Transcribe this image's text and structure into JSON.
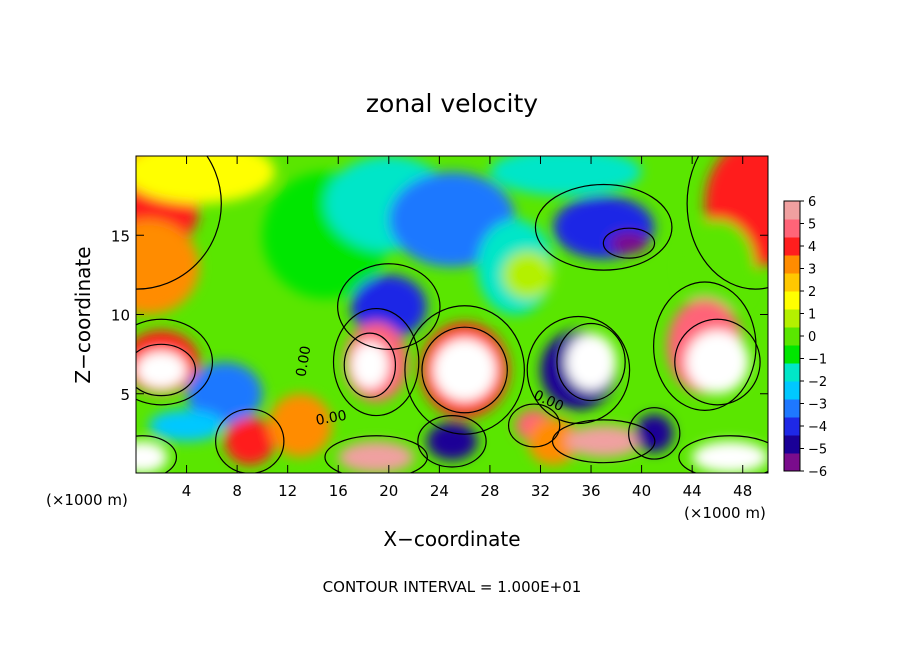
{
  "chart_data": {
    "type": "heatmap",
    "title": "zonal velocity",
    "xlabel": "X−coordinate",
    "ylabel": "Z−coordinate",
    "x_unit_left": "(×1000 m)",
    "x_unit_right": "(×1000 m)",
    "footer": "CONTOUR INTERVAL = 1.000E+01",
    "xlim": [
      0,
      50
    ],
    "ylim": [
      0,
      20
    ],
    "x_ticks": [
      4,
      8,
      12,
      16,
      20,
      24,
      28,
      32,
      36,
      40,
      44,
      48
    ],
    "y_ticks": [
      5,
      10,
      15
    ],
    "colorbar": {
      "range": [
        -6,
        6
      ],
      "labels": [
        "6",
        "5",
        "4",
        "3",
        "2",
        "1",
        "0",
        "−1",
        "−2",
        "−3",
        "−4",
        "−5",
        "−6"
      ],
      "colors": [
        "#7a0c8c",
        "#1a0096",
        "#1e28e6",
        "#1e78ff",
        "#00c8ff",
        "#00e6c8",
        "#00e600",
        "#5ae600",
        "#b4f000",
        "#ffff00",
        "#ffc800",
        "#ff8c00",
        "#ff1e1e",
        "#ff6478",
        "#f0a0a0"
      ]
    },
    "contour_labels": [
      {
        "text": "0.00",
        "x": 15.5,
        "y": 3.2,
        "rotate": -10
      },
      {
        "text": "0.00",
        "x": 32.5,
        "y": 4.3,
        "rotate": 25
      },
      {
        "text": "0.00",
        "x": 13.6,
        "y": 7.0,
        "rotate": -80
      }
    ],
    "field_blobs": [
      {
        "x": 0,
        "y": 17,
        "rx": 5,
        "ry": 4,
        "v": 4
      },
      {
        "x": 1,
        "y": 13,
        "rx": 4,
        "ry": 3,
        "v": 3
      },
      {
        "x": 5,
        "y": 19,
        "rx": 6,
        "ry": 2,
        "v": 1.5
      },
      {
        "x": 15,
        "y": 15,
        "rx": 5,
        "ry": 4,
        "v": -1
      },
      {
        "x": 20,
        "y": 17,
        "rx": 5,
        "ry": 3,
        "v": -2
      },
      {
        "x": 25,
        "y": 16,
        "rx": 5,
        "ry": 3,
        "v": -3
      },
      {
        "x": 30,
        "y": 13,
        "rx": 3,
        "ry": 3,
        "v": -2
      },
      {
        "x": 34,
        "y": 19,
        "rx": 6,
        "ry": 1.5,
        "v": -2
      },
      {
        "x": 37,
        "y": 15.5,
        "rx": 4,
        "ry": 2,
        "v": -4
      },
      {
        "x": 39,
        "y": 14.5,
        "rx": 1.5,
        "ry": 0.7,
        "v": -6
      },
      {
        "x": 31,
        "y": 12.5,
        "rx": 2,
        "ry": 1.5,
        "v": 1
      },
      {
        "x": 20,
        "y": 10.5,
        "rx": 3,
        "ry": 2,
        "v": -4
      },
      {
        "x": 49,
        "y": 17,
        "rx": 4,
        "ry": 4,
        "v": 4
      },
      {
        "x": 46,
        "y": 13,
        "rx": 3,
        "ry": 3,
        "v": 0
      },
      {
        "x": 2,
        "y": 7,
        "rx": 3,
        "ry": 2,
        "v": 4
      },
      {
        "x": 2,
        "y": 6.5,
        "rx": 2,
        "ry": 1.2,
        "v": 6.5
      },
      {
        "x": 7,
        "y": 5,
        "rx": 3,
        "ry": 2,
        "v": -3
      },
      {
        "x": 4,
        "y": 3,
        "rx": 3,
        "ry": 1,
        "v": -2.5
      },
      {
        "x": 0.5,
        "y": 1,
        "rx": 2,
        "ry": 1,
        "v": 6.5
      },
      {
        "x": 9,
        "y": 2,
        "rx": 2,
        "ry": 1.5,
        "v": 4
      },
      {
        "x": 13,
        "y": 3,
        "rx": 2.5,
        "ry": 2,
        "v": 3
      },
      {
        "x": 19,
        "y": 7,
        "rx": 2.5,
        "ry": 2.5,
        "v": 5
      },
      {
        "x": 18.5,
        "y": 6.8,
        "rx": 1.5,
        "ry": 1.5,
        "v": 6.5
      },
      {
        "x": 19,
        "y": 1,
        "rx": 3,
        "ry": 1,
        "v": 5.5
      },
      {
        "x": 26,
        "y": 6.5,
        "rx": 3.5,
        "ry": 3,
        "v": 4
      },
      {
        "x": 26,
        "y": 6.5,
        "rx": 2.5,
        "ry": 2,
        "v": 6.5
      },
      {
        "x": 25,
        "y": 2,
        "rx": 2,
        "ry": 1.2,
        "v": -5
      },
      {
        "x": 31.5,
        "y": 3,
        "rx": 1.5,
        "ry": 1,
        "v": 5
      },
      {
        "x": 33,
        "y": 2,
        "rx": 2,
        "ry": 1.5,
        "v": 3
      },
      {
        "x": 35,
        "y": 6.5,
        "rx": 3,
        "ry": 2.5,
        "v": -4.5
      },
      {
        "x": 36,
        "y": 7,
        "rx": 2,
        "ry": 1.8,
        "v": 6.5
      },
      {
        "x": 37,
        "y": 2,
        "rx": 3,
        "ry": 1,
        "v": 6
      },
      {
        "x": 41,
        "y": 2.5,
        "rx": 1.5,
        "ry": 1.2,
        "v": -5
      },
      {
        "x": 45,
        "y": 8,
        "rx": 3,
        "ry": 3,
        "v": 5
      },
      {
        "x": 46,
        "y": 7,
        "rx": 2.5,
        "ry": 2,
        "v": 6.5
      },
      {
        "x": 47,
        "y": 1,
        "rx": 3,
        "ry": 1,
        "v": 6.5
      }
    ]
  }
}
